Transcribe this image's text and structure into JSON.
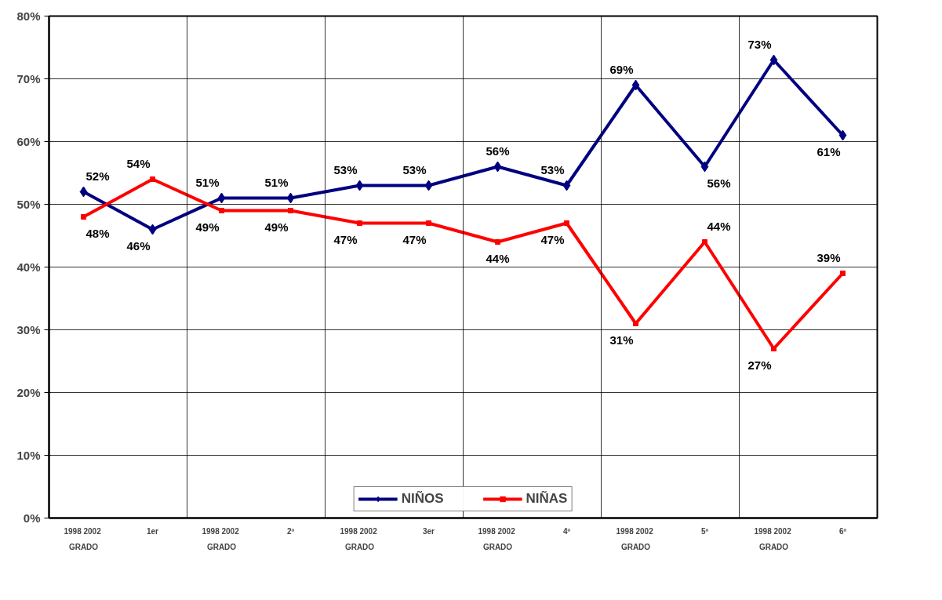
{
  "chart_data": {
    "type": "line",
    "categories": [
      "1998  2002\nGRADO",
      "1er",
      "1998  2002\nGRADO",
      "2º",
      "1998  2002\nGRADO",
      "3er",
      "1998  2002\nGRADO",
      "4º",
      "1998  2002\nGRADO",
      "5º",
      "1998  2002\nGRADO",
      "6º"
    ],
    "series": [
      {
        "name": "NIÑOS",
        "color": "#000080",
        "marker": "diamond",
        "values": [
          52,
          46,
          51,
          51,
          53,
          53,
          56,
          53,
          69,
          56,
          73,
          61
        ],
        "value_labels": [
          "52%",
          "46%",
          "51%",
          "51%",
          "53%",
          "53%",
          "56%",
          "53%",
          "69%",
          "56%",
          "73%",
          "61%"
        ]
      },
      {
        "name": "NIÑAS",
        "color": "#ff0000",
        "marker": "square",
        "values": [
          48,
          54,
          49,
          49,
          47,
          47,
          44,
          47,
          31,
          44,
          27,
          39
        ],
        "value_labels": [
          "48%",
          "54%",
          "49%",
          "49%",
          "47%",
          "47%",
          "44%",
          "47%",
          "31%",
          "44%",
          "27%",
          "39%"
        ]
      }
    ],
    "ylim": [
      0,
      80
    ],
    "yticks": [
      {
        "value": 0,
        "label": "0%"
      },
      {
        "value": 10,
        "label": "10%"
      },
      {
        "value": 20,
        "label": "20%"
      },
      {
        "value": 30,
        "label": "30%"
      },
      {
        "value": 40,
        "label": "40%"
      },
      {
        "value": 50,
        "label": "50%"
      },
      {
        "value": 60,
        "label": "60%"
      },
      {
        "value": 70,
        "label": "70%"
      },
      {
        "value": 80,
        "label": "80%"
      }
    ],
    "grid": true,
    "legend": "bottom",
    "line_style": "solid"
  }
}
